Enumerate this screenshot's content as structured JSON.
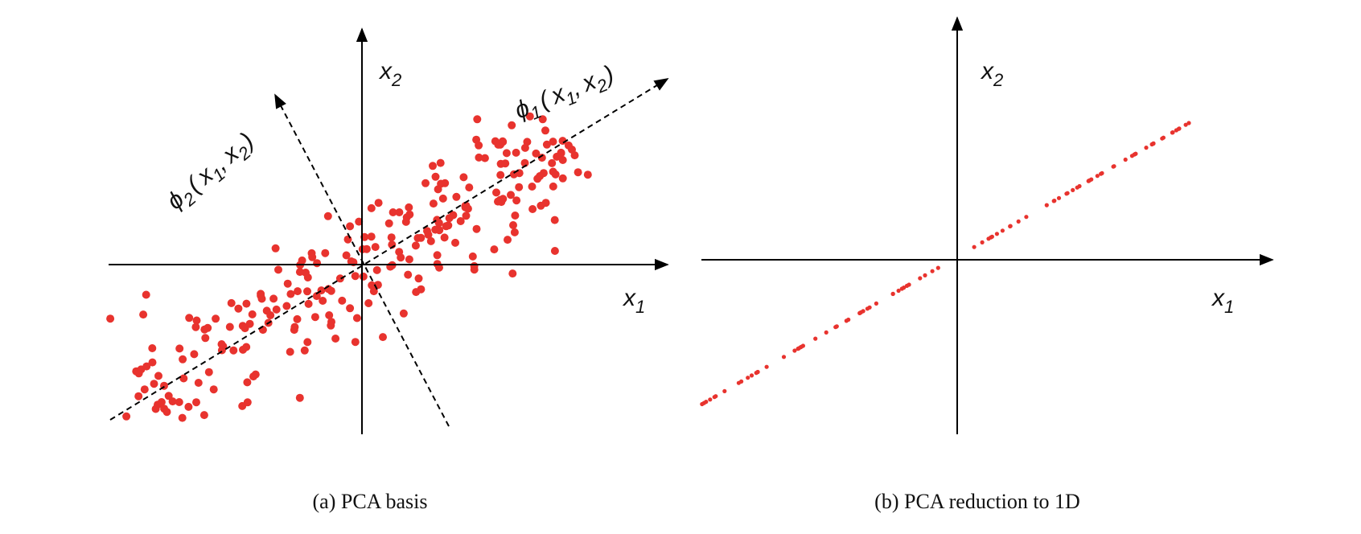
{
  "panel_a": {
    "caption": "(a) PCA basis",
    "x_axis_label": {
      "main": "x",
      "sub": "1"
    },
    "y_axis_label": {
      "main": "x",
      "sub": "2"
    },
    "phi1_label": {
      "phi": "ϕ",
      "sub": "1",
      "open": "(",
      "x": "x",
      "s1": "1",
      "comma": ",",
      "x2": "x",
      "s2": "2",
      "close": ")"
    },
    "phi2_label": {
      "phi": "ϕ",
      "sub": "2",
      "open": "(",
      "x": "x",
      "s1": "1",
      "comma": ",",
      "x2": "x",
      "s2": "2",
      "close": ")"
    }
  },
  "panel_b": {
    "caption": "(b) PCA reduction to 1D",
    "x_axis_label": {
      "main": "x",
      "sub": "1"
    },
    "y_axis_label": {
      "main": "x",
      "sub": "2"
    }
  },
  "colors": {
    "points": "#e8332e",
    "axes": "#000000"
  }
}
